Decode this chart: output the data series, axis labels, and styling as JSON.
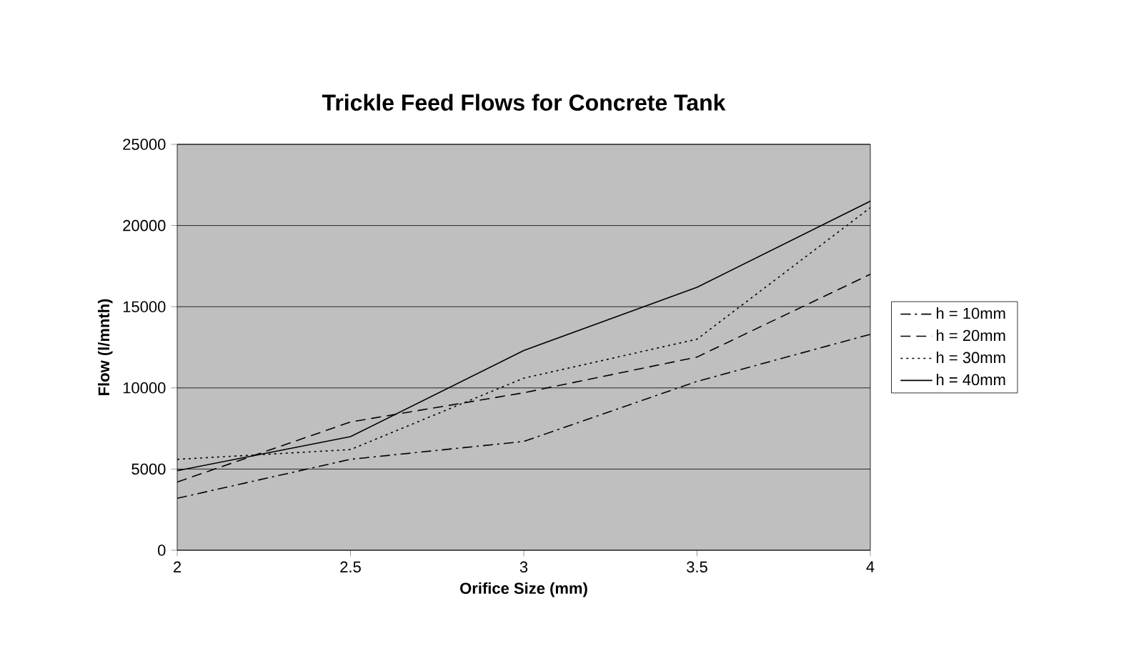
{
  "chart_data": {
    "type": "line",
    "title": "Trickle Feed Flows for Concrete Tank",
    "xlabel": "Orifice Size (mm)",
    "ylabel": "Flow (l/mnth)",
    "x": [
      2,
      2.5,
      3,
      3.5,
      4
    ],
    "series": [
      {
        "name": "h = 10mm",
        "color": "#000000",
        "line_style": "dashdot",
        "values": [
          3200,
          5600,
          6700,
          10400,
          13300
        ]
      },
      {
        "name": "h = 20mm",
        "color": "#000000",
        "line_style": "dashed",
        "values": [
          4200,
          7900,
          9700,
          11900,
          17000
        ]
      },
      {
        "name": "h = 30mm",
        "color": "#000000",
        "line_style": "dotted",
        "values": [
          5600,
          6200,
          10600,
          13000,
          21100
        ]
      },
      {
        "name": "h = 40mm",
        "color": "#000000",
        "line_style": "solid",
        "values": [
          4900,
          7000,
          12300,
          16200,
          21500
        ]
      }
    ],
    "xlim": [
      2,
      4
    ],
    "xticks": [
      2,
      2.5,
      3,
      3.5,
      4
    ],
    "ylim": [
      0,
      25000
    ],
    "yticks": [
      0,
      5000,
      10000,
      15000,
      20000,
      25000
    ],
    "grid": "y",
    "legend": "right",
    "marker": "none"
  }
}
